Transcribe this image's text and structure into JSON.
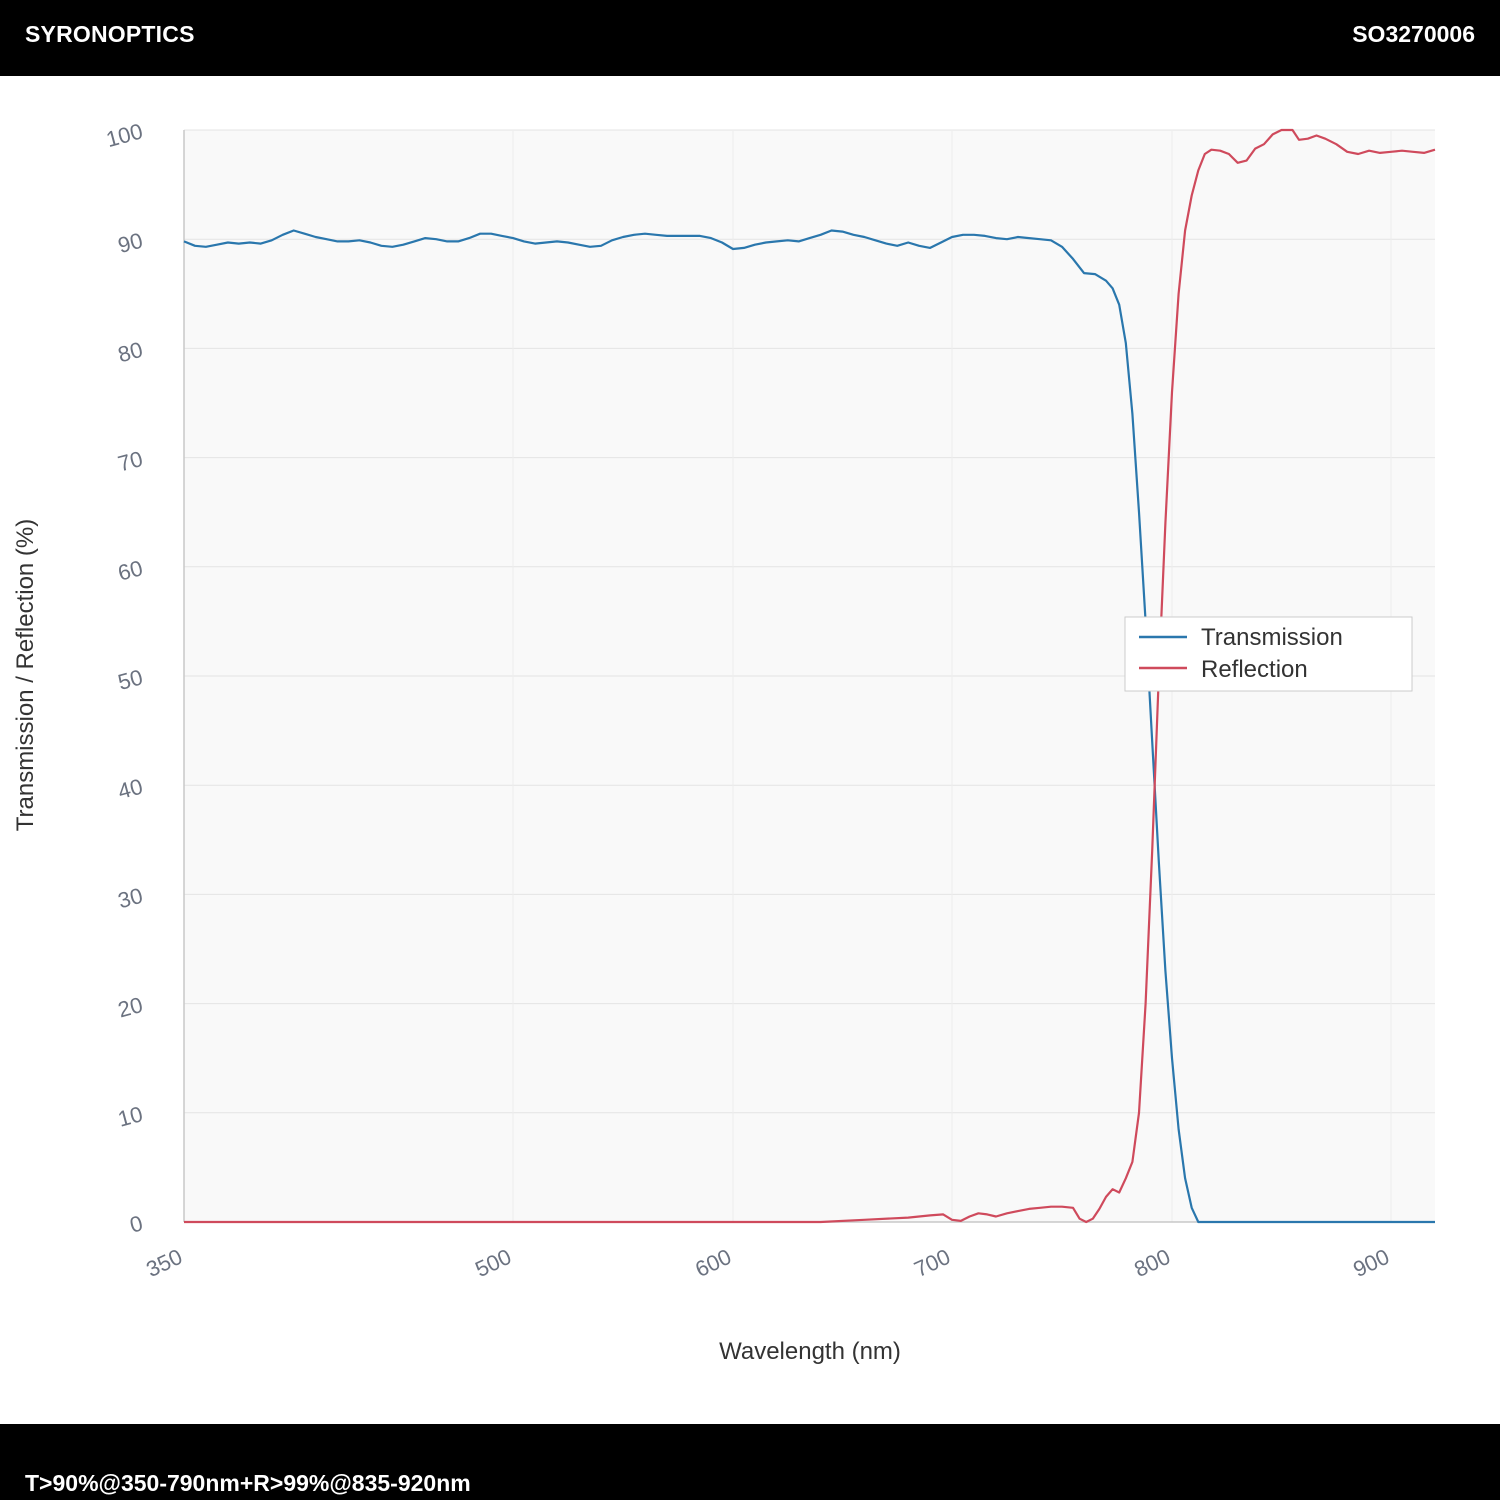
{
  "header": {
    "brand": "SYRONOPTICS",
    "part_number": "SO3270006"
  },
  "footer": {
    "spec": "T>90%@350-790nm+R>99%@835-920nm"
  },
  "colors": {
    "transmission": "#2a77ad",
    "reflection": "#cf4a5c",
    "plot_background": "#f9f9f9",
    "grid": "#e4e4e4",
    "tick_text": "#6b7280",
    "label_text": "#333333"
  },
  "chart_data": {
    "type": "line",
    "xlabel": "Wavelength (nm)",
    "ylabel": "Transmission / Reflection (%)",
    "xlim": [
      350,
      920
    ],
    "ylim": [
      0,
      100
    ],
    "x_ticks": [
      350,
      500,
      600,
      700,
      800,
      900
    ],
    "y_ticks": [
      0,
      10,
      20,
      30,
      40,
      50,
      60,
      70,
      80,
      90,
      100
    ],
    "grid": true,
    "legend_position": "right",
    "series": [
      {
        "name": "Transmission",
        "color": "#2a77ad",
        "points": [
          [
            350,
            89.8
          ],
          [
            355,
            89.4
          ],
          [
            360,
            89.3
          ],
          [
            365,
            89.5
          ],
          [
            370,
            89.7
          ],
          [
            375,
            89.6
          ],
          [
            380,
            89.7
          ],
          [
            385,
            89.6
          ],
          [
            390,
            89.9
          ],
          [
            395,
            90.4
          ],
          [
            400,
            90.8
          ],
          [
            405,
            90.5
          ],
          [
            410,
            90.2
          ],
          [
            415,
            90.0
          ],
          [
            420,
            89.8
          ],
          [
            425,
            89.8
          ],
          [
            430,
            89.9
          ],
          [
            435,
            89.7
          ],
          [
            440,
            89.4
          ],
          [
            445,
            89.3
          ],
          [
            450,
            89.5
          ],
          [
            455,
            89.8
          ],
          [
            460,
            90.1
          ],
          [
            465,
            90.0
          ],
          [
            470,
            89.8
          ],
          [
            475,
            89.8
          ],
          [
            480,
            90.1
          ],
          [
            485,
            90.5
          ],
          [
            490,
            90.5
          ],
          [
            495,
            90.3
          ],
          [
            500,
            90.1
          ],
          [
            505,
            89.8
          ],
          [
            510,
            89.6
          ],
          [
            515,
            89.7
          ],
          [
            520,
            89.8
          ],
          [
            525,
            89.7
          ],
          [
            530,
            89.5
          ],
          [
            535,
            89.3
          ],
          [
            540,
            89.4
          ],
          [
            545,
            89.9
          ],
          [
            550,
            90.2
          ],
          [
            555,
            90.4
          ],
          [
            560,
            90.5
          ],
          [
            565,
            90.4
          ],
          [
            570,
            90.3
          ],
          [
            575,
            90.3
          ],
          [
            580,
            90.3
          ],
          [
            585,
            90.3
          ],
          [
            590,
            90.1
          ],
          [
            595,
            89.7
          ],
          [
            600,
            89.1
          ],
          [
            605,
            89.2
          ],
          [
            610,
            89.5
          ],
          [
            615,
            89.7
          ],
          [
            620,
            89.8
          ],
          [
            625,
            89.9
          ],
          [
            630,
            89.8
          ],
          [
            635,
            90.1
          ],
          [
            640,
            90.4
          ],
          [
            645,
            90.8
          ],
          [
            650,
            90.7
          ],
          [
            655,
            90.4
          ],
          [
            660,
            90.2
          ],
          [
            665,
            89.9
          ],
          [
            670,
            89.6
          ],
          [
            675,
            89.4
          ],
          [
            680,
            89.7
          ],
          [
            685,
            89.4
          ],
          [
            690,
            89.2
          ],
          [
            695,
            89.7
          ],
          [
            700,
            90.2
          ],
          [
            705,
            90.4
          ],
          [
            710,
            90.4
          ],
          [
            715,
            90.3
          ],
          [
            720,
            90.1
          ],
          [
            725,
            90.0
          ],
          [
            730,
            90.2
          ],
          [
            735,
            90.1
          ],
          [
            740,
            90.0
          ],
          [
            745,
            89.9
          ],
          [
            750,
            89.3
          ],
          [
            755,
            88.2
          ],
          [
            760,
            86.9
          ],
          [
            765,
            86.8
          ],
          [
            770,
            86.2
          ],
          [
            773,
            85.5
          ],
          [
            776,
            84.0
          ],
          [
            779,
            80.5
          ],
          [
            782,
            74.0
          ],
          [
            785,
            65.0
          ],
          [
            788,
            55.0
          ],
          [
            791,
            44.0
          ],
          [
            794,
            33.0
          ],
          [
            797,
            23.0
          ],
          [
            800,
            15.0
          ],
          [
            803,
            8.5
          ],
          [
            806,
            4.0
          ],
          [
            809,
            1.3
          ],
          [
            812,
            0.0
          ],
          [
            830,
            0.0
          ],
          [
            850,
            0.0
          ],
          [
            880,
            0.0
          ],
          [
            920,
            0.0
          ]
        ]
      },
      {
        "name": "Reflection",
        "color": "#cf4a5c",
        "points": [
          [
            350,
            0.0
          ],
          [
            400,
            0.0
          ],
          [
            450,
            0.0
          ],
          [
            500,
            0.0
          ],
          [
            550,
            0.0
          ],
          [
            600,
            0.0
          ],
          [
            640,
            0.0
          ],
          [
            660,
            0.2
          ],
          [
            680,
            0.4
          ],
          [
            690,
            0.6
          ],
          [
            696,
            0.7
          ],
          [
            700,
            0.2
          ],
          [
            704,
            0.1
          ],
          [
            708,
            0.5
          ],
          [
            712,
            0.8
          ],
          [
            716,
            0.7
          ],
          [
            720,
            0.5
          ],
          [
            725,
            0.8
          ],
          [
            730,
            1.0
          ],
          [
            735,
            1.2
          ],
          [
            740,
            1.3
          ],
          [
            745,
            1.4
          ],
          [
            750,
            1.4
          ],
          [
            755,
            1.3
          ],
          [
            758,
            0.3
          ],
          [
            761,
            0.0
          ],
          [
            764,
            0.3
          ],
          [
            767,
            1.2
          ],
          [
            770,
            2.3
          ],
          [
            773,
            3.0
          ],
          [
            776,
            2.7
          ],
          [
            779,
            4.0
          ],
          [
            782,
            5.5
          ],
          [
            785,
            10.0
          ],
          [
            788,
            20.0
          ],
          [
            791,
            34.0
          ],
          [
            794,
            50.0
          ],
          [
            797,
            64.0
          ],
          [
            800,
            76.0
          ],
          [
            803,
            85.0
          ],
          [
            806,
            90.8
          ],
          [
            809,
            94.0
          ],
          [
            812,
            96.3
          ],
          [
            815,
            97.8
          ],
          [
            818,
            98.2
          ],
          [
            822,
            98.1
          ],
          [
            826,
            97.8
          ],
          [
            830,
            97.0
          ],
          [
            834,
            97.2
          ],
          [
            838,
            98.3
          ],
          [
            842,
            98.7
          ],
          [
            846,
            99.6
          ],
          [
            850,
            100.0
          ],
          [
            855,
            100.0
          ],
          [
            858,
            99.1
          ],
          [
            862,
            99.2
          ],
          [
            866,
            99.5
          ],
          [
            870,
            99.2
          ],
          [
            875,
            98.7
          ],
          [
            880,
            98.0
          ],
          [
            885,
            97.8
          ],
          [
            890,
            98.1
          ],
          [
            895,
            97.9
          ],
          [
            900,
            98.0
          ],
          [
            905,
            98.1
          ],
          [
            910,
            98.0
          ],
          [
            915,
            97.9
          ],
          [
            920,
            98.2
          ]
        ]
      }
    ]
  }
}
